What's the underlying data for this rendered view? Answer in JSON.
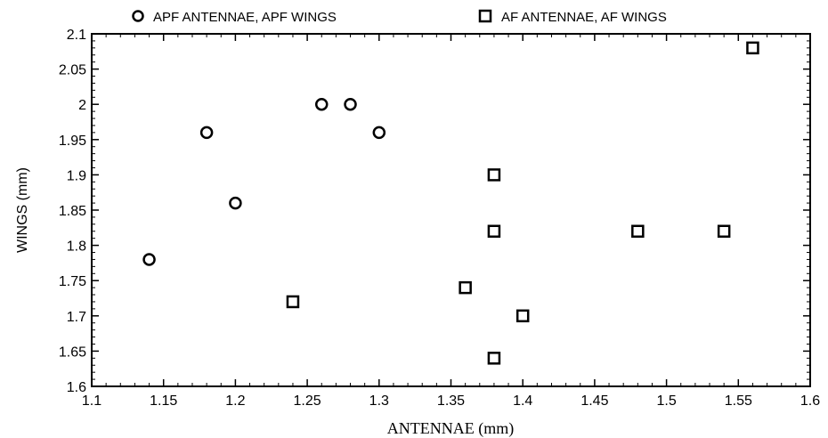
{
  "chart_data": {
    "type": "scatter",
    "xlabel": "ANTENNAE  (mm)",
    "ylabel": "WINGS  (mm)",
    "xlim": [
      1.1,
      1.6
    ],
    "ylim": [
      1.6,
      2.1
    ],
    "x_ticks": [
      "1.1",
      "1.15",
      "1.2",
      "1.25",
      "1.3",
      "1.35",
      "1.4",
      "1.45",
      "1.5",
      "1.55",
      "1.6"
    ],
    "y_ticks": [
      "1.6",
      "1.65",
      "1.7",
      "1.75",
      "1.8",
      "1.85",
      "1.9",
      "1.95",
      "2",
      "2.05",
      "2.1"
    ],
    "grid": false,
    "legend_position": "top",
    "series": [
      {
        "name": "APF ANTENNAE, APF WINGS",
        "marker": "circle",
        "points": [
          {
            "x": 1.14,
            "y": 1.78
          },
          {
            "x": 1.18,
            "y": 1.96
          },
          {
            "x": 1.2,
            "y": 1.86
          },
          {
            "x": 1.26,
            "y": 2.0
          },
          {
            "x": 1.28,
            "y": 2.0
          },
          {
            "x": 1.3,
            "y": 1.96
          }
        ]
      },
      {
        "name": "AF ANTENNAE, AF WINGS",
        "marker": "square",
        "points": [
          {
            "x": 1.24,
            "y": 1.72
          },
          {
            "x": 1.36,
            "y": 1.74
          },
          {
            "x": 1.38,
            "y": 1.9
          },
          {
            "x": 1.38,
            "y": 1.82
          },
          {
            "x": 1.38,
            "y": 1.64
          },
          {
            "x": 1.4,
            "y": 1.7
          },
          {
            "x": 1.48,
            "y": 1.82
          },
          {
            "x": 1.54,
            "y": 1.82
          },
          {
            "x": 1.56,
            "y": 2.08
          }
        ]
      }
    ]
  },
  "colors": {
    "axis": "#000000",
    "marker_stroke": "#000000",
    "background": "#ffffff"
  }
}
